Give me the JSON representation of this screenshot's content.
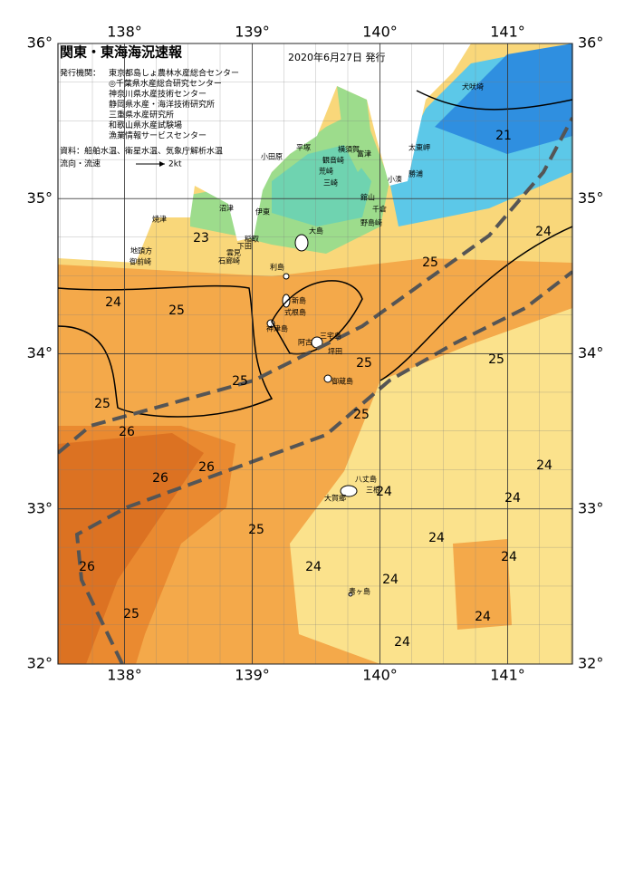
{
  "header": {
    "title": "関東・東海海況速報",
    "date": "2020年6月27日 発行",
    "issuer_label": "発行機関：",
    "issuers": [
      "東京都島しょ農林水産総合センター",
      "◎千葉県水産総合研究センター",
      "神奈川県水産技術センター",
      "静岡県水産・海洋技術研究所",
      "三重県水産研究所",
      "和歌山県水産試験場",
      "漁業情報サービスセンター"
    ],
    "sources": "資料：船舶水温、衛星水温、気象庁解析水温",
    "current_label": "流向・流速",
    "current_scale": "2kt"
  },
  "map": {
    "lon_ticks": [
      {
        "value": 138,
        "label": "138°"
      },
      {
        "value": 139,
        "label": "139°"
      },
      {
        "value": 140,
        "label": "140°"
      },
      {
        "value": 141,
        "label": "141°"
      }
    ],
    "lat_ticks": [
      {
        "value": 36,
        "label": "36°"
      },
      {
        "value": 35,
        "label": "35°"
      },
      {
        "value": 34,
        "label": "34°"
      },
      {
        "value": 33,
        "label": "33°"
      },
      {
        "value": 32,
        "label": "32°"
      }
    ],
    "place_names": [
      "犬吠埼",
      "太東岬",
      "勝浦",
      "小湊",
      "富津",
      "横須賀",
      "観音崎",
      "平塚",
      "荒崎",
      "三崎",
      "小田原",
      "館山",
      "千倉",
      "野島崎",
      "伊東",
      "大島",
      "沼津",
      "焼津",
      "稲取",
      "下田",
      "雲見",
      "石廊崎",
      "地頭方",
      "御前崎",
      "利島",
      "新島",
      "式根島",
      "神津島",
      "阿古",
      "三宅島",
      "坪田",
      "御蔵島",
      "八丈島",
      "三根",
      "大賀郷",
      "青ヶ島"
    ],
    "temperature_labels": [
      21,
      23,
      24,
      25,
      24,
      25,
      25,
      25,
      25,
      25,
      25,
      26,
      26,
      26,
      24,
      24,
      24,
      25,
      24,
      24,
      24,
      26,
      24,
      24,
      25,
      24
    ]
  }
}
